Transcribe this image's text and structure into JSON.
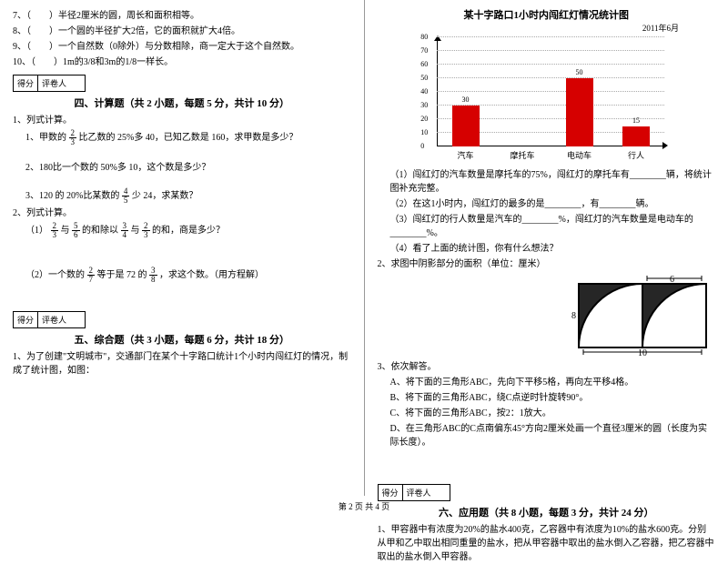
{
  "left": {
    "q7": "7、（　　）半径2厘米的圆，周长和面积相等。",
    "q8": "8、（　　）一个圆的半径扩大2倍，它的面积就扩大4倍。",
    "q9": "9、（　　）一个自然数（0除外）与分数相除，商一定大于这个自然数。",
    "q10": "10、（　　）1m的3/8和3m的1/8一样长。",
    "score_l": "得分",
    "score_r": "评卷人",
    "sec4": "四、计算题（共 2 小题，每题 5 分，共计 10 分）",
    "s4_1": "1、列式计算。",
    "s4_1_1a": "1、甲数的",
    "s4_1_1b": "比乙数的 25%多 40，已知乙数是 160，求甲数是多少？",
    "s4_1_2": "2、180比一个数的 50%多 10，这个数是多少？",
    "s4_1_3a": "3、120 的 20%比某数的",
    "s4_1_3b": "少 24，求某数？",
    "s4_2": "2、列式计算。",
    "s4_2_1a": "（1）",
    "s4_2_1b": "与",
    "s4_2_1c": "的和除以",
    "s4_2_1d": "与",
    "s4_2_1e": "的和，商是多少？",
    "s4_2_2a": "（2）一个数的",
    "s4_2_2b": "等于是 72 的",
    "s4_2_2c": "，求这个数。（用方程解）",
    "sec5": "五、综合题（共 3 小题，每题 6 分，共计 18 分）",
    "s5_1": "1、为了创建\"文明城市\"，交通部门在某个十字路口统计1个小时内闯红灯的情况，制成了统计图，如图：",
    "fracs": {
      "f23n": "2",
      "f23d": "3",
      "f45n": "4",
      "f45d": "5",
      "f56n": "5",
      "f56d": "6",
      "f34n": "3",
      "f34d": "4",
      "f27n": "2",
      "f27d": "7",
      "f38n": "3",
      "f38d": "8"
    }
  },
  "right": {
    "chart_title": "某十字路口1小时内闯红灯情况统计图",
    "chart_date": "2011年6月",
    "chart": {
      "ylabels": [
        "80",
        "70",
        "60",
        "50",
        "40",
        "30",
        "20",
        "10",
        "0"
      ],
      "ytick_max": 80,
      "bars": [
        {
          "label": "汽车",
          "value": 30,
          "color": "#d60000"
        },
        {
          "label": "摩托车",
          "value": 0,
          "color": "#d60000"
        },
        {
          "label": "电动车",
          "value": 50,
          "color": "#d60000"
        },
        {
          "label": "行人",
          "value": 15,
          "color": "#d60000"
        }
      ]
    },
    "q1": "（1）闯红灯的汽车数量是摩托车的75%，闯红灯的摩托车有________辆，将统计图补充完整。",
    "q2": "（2）在这1小时内，闯红灯的最多的是________，有________辆。",
    "q3": "（3）闯红灯的行人数量是汽车的________%，闯红灯的汽车数量是电动车的________%。",
    "q4": "（4）看了上面的统计图，你有什么想法？",
    "s5_2": "2、求图中阴影部分的面积（单位：厘米）",
    "shape": {
      "label6": "6",
      "label8": "8",
      "label10": "10"
    },
    "s5_3": "3、依次解答。",
    "s5_3a": "A、将下面的三角形ABC，先向下平移5格，再向左平移4格。",
    "s5_3b": "B、将下面的三角形ABC，绕C点逆时针旋转90°。",
    "s5_3c": "C、将下面的三角形ABC，按2：1放大。",
    "s5_3d": "D、在三角形ABC的C点南偏东45°方向2厘米处画一个直径3厘米的圆（长度为实际长度）。",
    "sec6": "六、应用题（共 8 小题，每题 3 分，共计 24 分）",
    "s6_1": "1、甲容器中有浓度为20%的盐水400克，乙容器中有浓度为10%的盐水600克。分别从甲和乙中取出相同重量的盐水，把从甲容器中取出的盐水倒入乙容器，把乙容器中取出的盐水倒入甲容器。",
    "score_l": "得分",
    "score_r": "评卷人"
  },
  "footer": "第 2 页 共 4 页"
}
